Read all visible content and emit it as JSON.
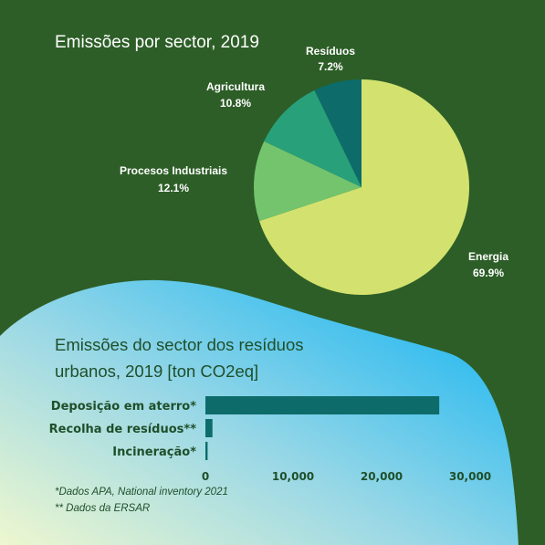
{
  "colors": {
    "background": "#2d5e27",
    "wave_start": "#eef7cf",
    "wave_mid": "#9ad8e6",
    "wave_end": "#14b4f2",
    "bar": "#0d6c6a",
    "text_dark": "#1f4f2a"
  },
  "chart_data": [
    {
      "type": "pie",
      "title": "Emissões por sector, 2019",
      "slices": [
        {
          "label": "Energia",
          "value": 69.9,
          "display": "69.9%",
          "color": "#d3e26e"
        },
        {
          "label": "Procesos Industriais",
          "value": 12.1,
          "display": "12.1%",
          "color": "#74c46e"
        },
        {
          "label": "Agricultura",
          "value": 10.8,
          "display": "10.8%",
          "color": "#28a07a"
        },
        {
          "label": "Resíduos",
          "value": 7.2,
          "display": "7.2%",
          "color": "#0d6c6a"
        }
      ]
    },
    {
      "type": "bar",
      "orientation": "horizontal",
      "title_lines": [
        "Emissões do sector dos resíduos",
        "urbanos, 2019 [ton CO2eq]"
      ],
      "categories": [
        "Deposição em aterro*",
        "Recolha de resíduos**",
        "Incineração*"
      ],
      "values": [
        26500,
        800,
        250
      ],
      "xlim": [
        0,
        30000
      ],
      "xticks": [
        0,
        10000,
        20000,
        30000
      ],
      "xtick_labels": [
        "0",
        "10,000",
        "20,000",
        "30,000"
      ],
      "grid": false
    }
  ],
  "notes": [
    "*Dados APA, National inventory 2021",
    "** Dados da ERSAR"
  ]
}
